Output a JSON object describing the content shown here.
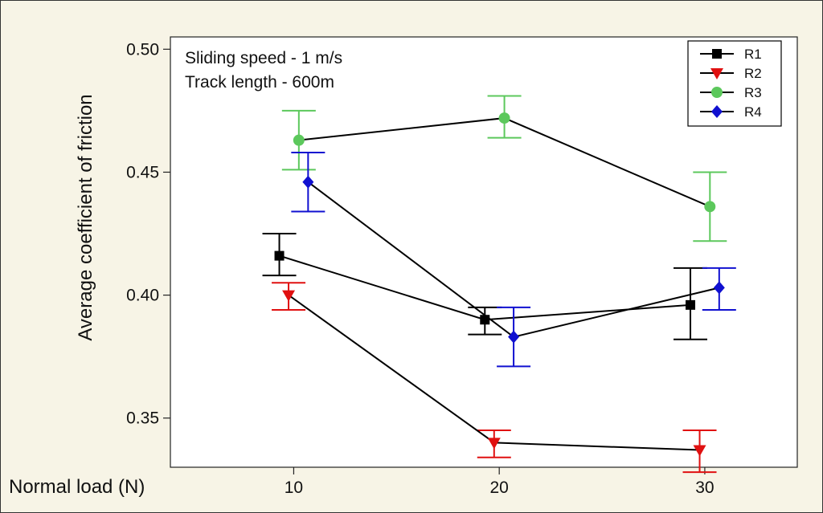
{
  "chart_data": {
    "type": "line",
    "title": "",
    "xlabel": "Normal load (N)",
    "ylabel": "Average coefficient of friction",
    "x": [
      10,
      20,
      30
    ],
    "x_ticks": [
      "10",
      "20",
      "30"
    ],
    "y_ticks": [
      "0.35",
      "0.40",
      "0.45",
      "0.50"
    ],
    "xlim": [
      4,
      34.5
    ],
    "ylim": [
      0.33,
      0.505
    ],
    "grid": false,
    "legend_position": "top-right",
    "annotations": [
      "Sliding speed - 1 m/s",
      "Track length - 600m"
    ],
    "series": [
      {
        "name": "R1",
        "color": "#000000",
        "marker": "square",
        "x_offset": -0.7,
        "values": [
          0.416,
          0.39,
          0.396
        ],
        "err_low": [
          0.408,
          0.384,
          0.382
        ],
        "err_high": [
          0.425,
          0.395,
          0.411
        ]
      },
      {
        "name": "R2",
        "color": "#e01010",
        "marker": "triangle-down",
        "x_offset": -0.25,
        "values": [
          0.4,
          0.34,
          0.337
        ],
        "err_low": [
          0.394,
          0.334,
          0.328
        ],
        "err_high": [
          0.405,
          0.345,
          0.345
        ]
      },
      {
        "name": "R3",
        "color": "#5cc85c",
        "marker": "circle",
        "x_offset": 0.25,
        "values": [
          0.463,
          0.472,
          0.436
        ],
        "err_low": [
          0.451,
          0.464,
          0.422
        ],
        "err_high": [
          0.475,
          0.481,
          0.45
        ]
      },
      {
        "name": "R4",
        "color": "#1010d0",
        "marker": "diamond",
        "x_offset": 0.7,
        "values": [
          0.446,
          0.383,
          0.403
        ],
        "err_low": [
          0.434,
          0.371,
          0.394
        ],
        "err_high": [
          0.458,
          0.395,
          0.411
        ]
      }
    ]
  }
}
